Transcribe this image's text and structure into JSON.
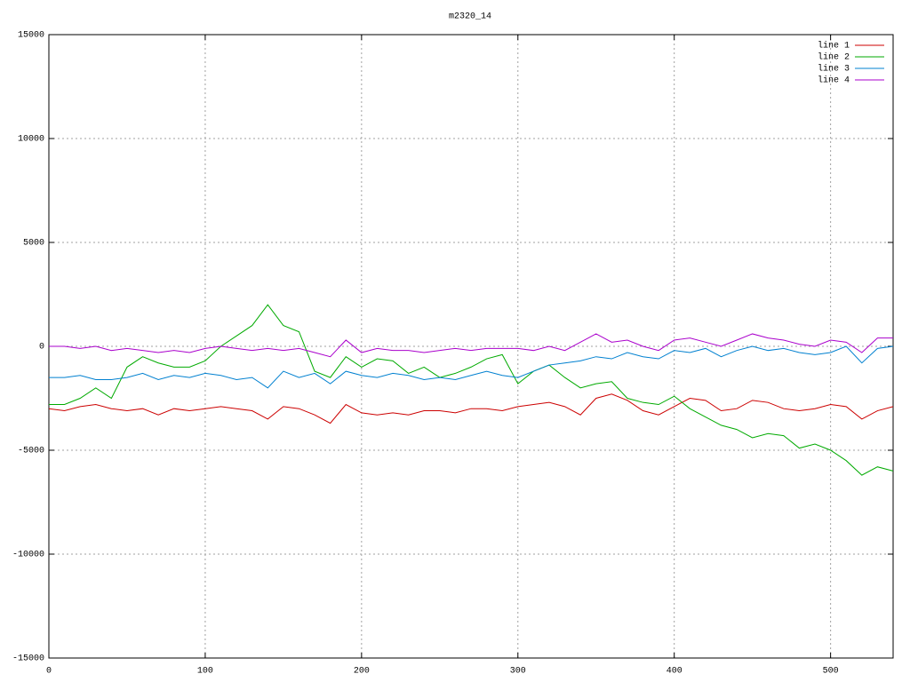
{
  "chart_data": {
    "type": "line",
    "title": "m2320_14",
    "x": [
      0,
      10,
      20,
      30,
      40,
      50,
      60,
      70,
      80,
      90,
      100,
      110,
      120,
      130,
      140,
      150,
      160,
      170,
      180,
      190,
      200,
      210,
      220,
      230,
      240,
      250,
      260,
      270,
      280,
      290,
      300,
      310,
      320,
      330,
      340,
      350,
      360,
      370,
      380,
      390,
      400,
      410,
      420,
      430,
      440,
      450,
      460,
      470,
      480,
      490,
      500,
      510,
      520,
      530,
      540
    ],
    "series": [
      {
        "name": "line 1",
        "color": "#cc0000",
        "values": [
          -3000,
          -3100,
          -2900,
          -2800,
          -3000,
          -3100,
          -3000,
          -3300,
          -3000,
          -3100,
          -3000,
          -2900,
          -3000,
          -3100,
          -3500,
          -2900,
          -3000,
          -3300,
          -3700,
          -2800,
          -3200,
          -3300,
          -3200,
          -3300,
          -3100,
          -3100,
          -3200,
          -3000,
          -3000,
          -3100,
          -2900,
          -2800,
          -2700,
          -2900,
          -3300,
          -2500,
          -2300,
          -2600,
          -3100,
          -3300,
          -2900,
          -2500,
          -2600,
          -3100,
          -3000,
          -2600,
          -2700,
          -3000,
          -3100,
          -3000,
          -2800,
          -2900,
          -3500,
          -3100,
          -2900
        ]
      },
      {
        "name": "line 2",
        "color": "#00aa00",
        "values": [
          -2800,
          -2800,
          -2500,
          -2000,
          -2500,
          -1000,
          -500,
          -800,
          -1000,
          -1000,
          -700,
          0,
          500,
          1000,
          2000,
          1000,
          700,
          -1200,
          -1500,
          -500,
          -1000,
          -600,
          -700,
          -1300,
          -1000,
          -1500,
          -1300,
          -1000,
          -600,
          -400,
          -1800,
          -1200,
          -900,
          -1500,
          -2000,
          -1800,
          -1700,
          -2500,
          -2700,
          -2800,
          -2400,
          -3000,
          -3400,
          -3800,
          -4000,
          -4400,
          -4200,
          -4300,
          -4900,
          -4700,
          -5000,
          -5500,
          -6200,
          -5800,
          -6000
        ]
      },
      {
        "name": "line 3",
        "color": "#0080d0",
        "values": [
          -1500,
          -1500,
          -1400,
          -1600,
          -1600,
          -1500,
          -1300,
          -1600,
          -1400,
          -1500,
          -1300,
          -1400,
          -1600,
          -1500,
          -2000,
          -1200,
          -1500,
          -1300,
          -1800,
          -1200,
          -1400,
          -1500,
          -1300,
          -1400,
          -1600,
          -1500,
          -1600,
          -1400,
          -1200,
          -1400,
          -1500,
          -1200,
          -900,
          -800,
          -700,
          -500,
          -600,
          -300,
          -500,
          -600,
          -200,
          -300,
          -100,
          -500,
          -200,
          0,
          -200,
          -100,
          -300,
          -400,
          -300,
          0,
          -800,
          -100,
          0
        ]
      },
      {
        "name": "line 4",
        "color": "#aa00cc",
        "values": [
          0,
          0,
          -100,
          0,
          -200,
          -100,
          -200,
          -300,
          -200,
          -300,
          -100,
          0,
          -100,
          -200,
          -100,
          -200,
          -100,
          -300,
          -500,
          300,
          -300,
          -100,
          -200,
          -200,
          -300,
          -200,
          -100,
          -200,
          -100,
          -100,
          -100,
          -200,
          0,
          -200,
          200,
          600,
          200,
          300,
          0,
          -200,
          300,
          400,
          200,
          0,
          300,
          600,
          400,
          300,
          100,
          0,
          300,
          200,
          -300,
          400,
          400
        ]
      }
    ],
    "xlim": [
      0,
      540
    ],
    "xticks": [
      0,
      100,
      200,
      300,
      400,
      500
    ],
    "ylim": [
      -15000,
      15000
    ],
    "yticks": [
      -15000,
      -10000,
      -5000,
      0,
      5000,
      10000,
      15000
    ],
    "grid": true,
    "legend": "top-right"
  }
}
